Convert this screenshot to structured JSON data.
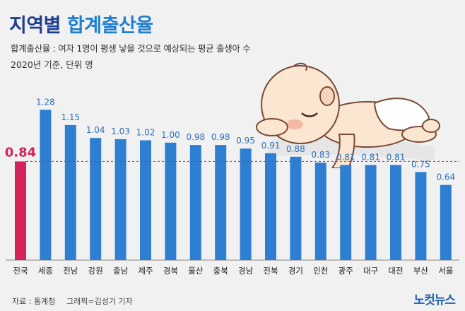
{
  "header": {
    "title_strong": "지역별",
    "title_rest": "합계출산율",
    "subtitle": "합계출산율 : 여자 1명이 평생 낳을 것으로 예상되는 평균 출생아 수",
    "basis": "2020년 기준, 단위 명"
  },
  "footer": {
    "source": "자료 : 통계청",
    "credit": "그래픽=김성기 기자",
    "logo": "노컷뉴스"
  },
  "colors": {
    "bar": "#2e7fd1",
    "highlight": "#d2245a",
    "reference_line": "#d2245a",
    "title_dark": "#1e3f90",
    "title_light": "#1f7fd0"
  },
  "illustration": {
    "name": "sleeping-baby-illustration"
  },
  "chart_data": {
    "type": "bar",
    "title": "지역별 합계출산율",
    "categories": [
      "전국",
      "세종",
      "전남",
      "강원",
      "충남",
      "제주",
      "경북",
      "울산",
      "충북",
      "경남",
      "전북",
      "경기",
      "인천",
      "광주",
      "대구",
      "대전",
      "부산",
      "서울"
    ],
    "values": [
      0.84,
      1.28,
      1.15,
      1.04,
      1.03,
      1.02,
      1.0,
      0.98,
      0.98,
      0.95,
      0.91,
      0.88,
      0.83,
      0.81,
      0.81,
      0.81,
      0.75,
      0.64
    ],
    "value_labels": [
      "0.84",
      "1.28",
      "1.15",
      "1.04",
      "1.03",
      "1.02",
      "1.00",
      "0.98",
      "0.98",
      "0.95",
      "0.91",
      "0.88",
      "0.83",
      "0.81",
      "0.81",
      "0.81",
      "0.75",
      "0.64"
    ],
    "highlight_category": "전국",
    "reference_value": 0.84,
    "ylim": [
      0,
      1.3
    ],
    "xlabel": "",
    "ylabel": "명"
  }
}
